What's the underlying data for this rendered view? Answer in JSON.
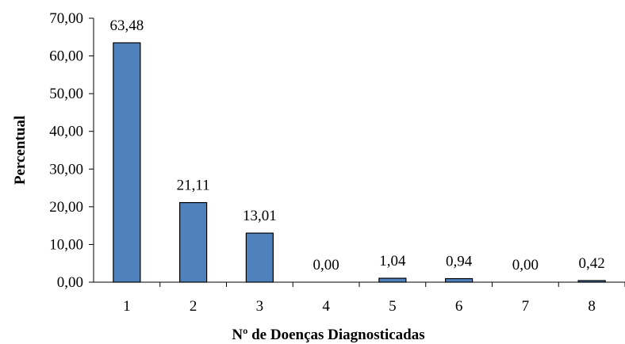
{
  "chart_data": {
    "type": "bar",
    "categories": [
      "1",
      "2",
      "3",
      "4",
      "5",
      "6",
      "7",
      "8"
    ],
    "values": [
      63.48,
      21.11,
      13.01,
      0.0,
      1.04,
      0.94,
      0.0,
      0.42
    ],
    "data_labels": [
      "63,48",
      "21,11",
      "13,01",
      "0,00",
      "1,04",
      "0,94",
      "0,00",
      "0,42"
    ],
    "title": "",
    "xlabel": "Nº de Doenças Diagnosticadas",
    "ylabel": "Percentual",
    "ylim": [
      0,
      70
    ],
    "yticks": [
      0,
      10,
      20,
      30,
      40,
      50,
      60,
      70
    ],
    "ytick_labels": [
      "0,00",
      "10,00",
      "20,00",
      "30,00",
      "40,00",
      "50,00",
      "60,00",
      "70,00"
    ],
    "grid": false,
    "legend": "none",
    "bar_color": "#4f81bd",
    "bar_edge_color": "#000000"
  }
}
